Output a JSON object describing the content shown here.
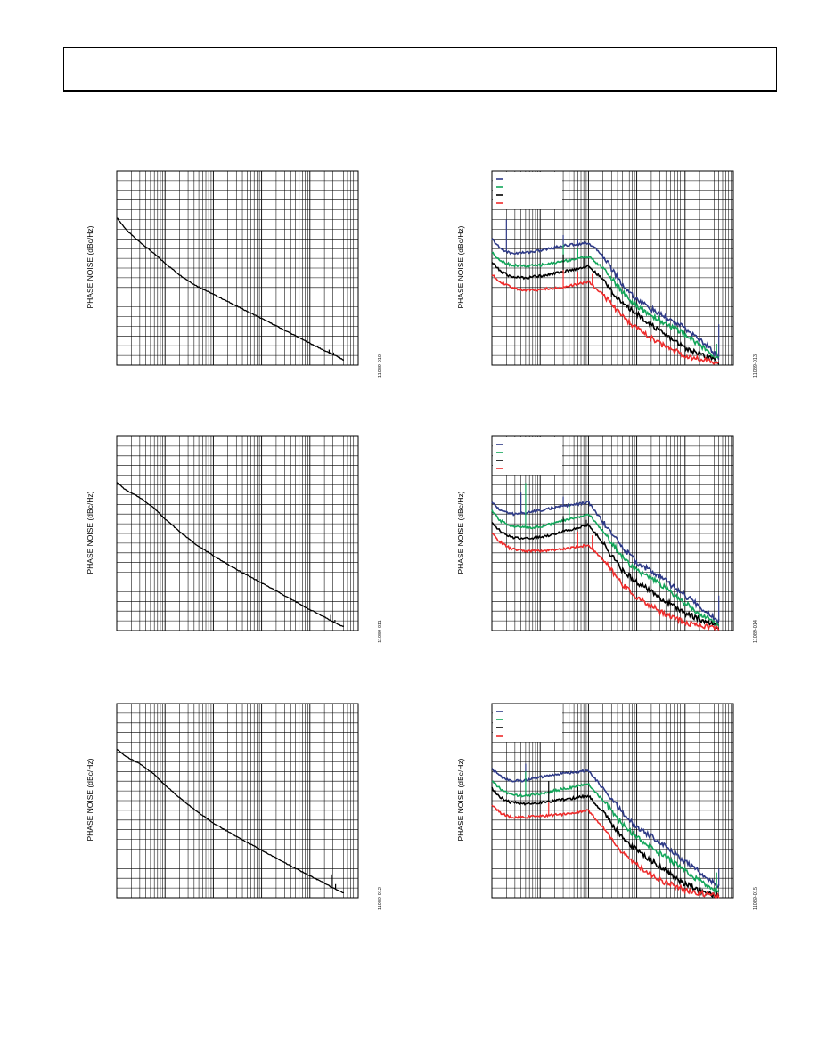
{
  "header": {
    "title": ""
  },
  "colors": {
    "grid": "#000000",
    "navy": "#2e3a87",
    "green": "#12a65a",
    "black": "#000000",
    "red": "#ee2b2b"
  },
  "chart_data": [
    {
      "type": "line",
      "panel": "left-1",
      "ylabel": "PHASE NOISE (dBc/Hz)",
      "figure_id": "11089-010",
      "xscale": "log",
      "xlim": [
        1000,
        100000000
      ],
      "ylim": [
        0,
        20
      ],
      "grid": true,
      "legend": "none",
      "series": [
        {
          "color": "black",
          "x": [
            1000,
            1600,
            2500,
            5000,
            10000,
            20000,
            40000,
            100000,
            300000,
            1000000,
            3000000,
            8000000,
            20000000,
            30000000,
            40000000,
            50000000
          ],
          "y": [
            15.2,
            13.9,
            13.0,
            11.8,
            10.5,
            9.3,
            8.3,
            7.3,
            6.1,
            4.8,
            3.6,
            2.5,
            1.5,
            1.1,
            0.8,
            0.5
          ],
          "spurs": [
            {
              "x": 25000000,
              "y": 1.6
            },
            {
              "x": 31000000,
              "y": 1.3
            }
          ]
        }
      ]
    },
    {
      "type": "line",
      "panel": "left-2",
      "ylabel": "PHASE NOISE (dBc/Hz)",
      "figure_id": "11089-011",
      "xscale": "log",
      "xlim": [
        1000,
        100000000
      ],
      "ylim": [
        0,
        20
      ],
      "grid": true,
      "legend": "none",
      "series": [
        {
          "color": "black",
          "x": [
            1000,
            1500,
            3000,
            6000,
            10000,
            20000,
            40000,
            100000,
            300000,
            1000000,
            3000000,
            8000000,
            20000000,
            30000000,
            40000000,
            50000000
          ],
          "y": [
            15.3,
            14.5,
            13.7,
            12.6,
            11.5,
            10.2,
            9.0,
            7.7,
            6.3,
            4.9,
            3.6,
            2.4,
            1.4,
            0.9,
            0.6,
            0.4
          ],
          "spurs": [
            {
              "x": 27000000,
              "y": 1.6
            },
            {
              "x": 33000000,
              "y": 1.1
            }
          ]
        }
      ]
    },
    {
      "type": "line",
      "panel": "left-3",
      "ylabel": "PHASE NOISE (dBc/Hz)",
      "figure_id": "11089-012",
      "xscale": "log",
      "xlim": [
        1000,
        100000000
      ],
      "ylim": [
        0,
        20
      ],
      "grid": true,
      "legend": "none",
      "series": [
        {
          "color": "black",
          "x": [
            1000,
            1500,
            3000,
            6000,
            10000,
            20000,
            40000,
            100000,
            300000,
            1000000,
            3000000,
            8000000,
            20000000,
            30000000,
            40000000,
            50000000
          ],
          "y": [
            15.3,
            14.6,
            13.8,
            12.7,
            11.6,
            10.3,
            9.1,
            7.7,
            6.3,
            4.9,
            3.6,
            2.5,
            1.5,
            1.0,
            0.7,
            0.5
          ],
          "spurs": [
            {
              "x": 28000000,
              "y": 2.4
            },
            {
              "x": 34000000,
              "y": 1.4
            }
          ]
        }
      ]
    },
    {
      "type": "line",
      "panel": "right-1",
      "ylabel": "PHASE NOISE (dBc/Hz)",
      "figure_id": "11089-013",
      "xscale": "log",
      "xlim": [
        1000,
        100000000
      ],
      "ylim": [
        0,
        20
      ],
      "grid": true,
      "legend": "top-left",
      "series": [
        {
          "color": "navy",
          "x": [
            1000,
            1500,
            2500,
            5000,
            10000,
            30000,
            100000,
            200000,
            500000,
            1000000,
            3000000,
            10000000,
            30000000,
            50000000
          ],
          "y": [
            13.0,
            12.0,
            11.5,
            11.6,
            11.8,
            12.3,
            12.6,
            11.3,
            8.3,
            6.8,
            5.2,
            3.8,
            1.9,
            0.8
          ],
          "spurs": [
            {
              "x": 2000,
              "y": 15.0
            },
            {
              "x": 30000,
              "y": 13.4
            },
            {
              "x": 60000,
              "y": 13.0
            },
            {
              "x": 50000000,
              "y": 4.2
            }
          ]
        },
        {
          "color": "green",
          "x": [
            1000,
            1500,
            2500,
            5000,
            10000,
            30000,
            100000,
            200000,
            500000,
            1000000,
            3000000,
            10000000,
            30000000,
            50000000
          ],
          "y": [
            11.6,
            10.8,
            10.3,
            10.2,
            10.3,
            10.7,
            11.2,
            10.0,
            7.6,
            6.0,
            4.6,
            3.2,
            1.4,
            0.6
          ],
          "spurs": [
            {
              "x": 30000,
              "y": 12.4
            },
            {
              "x": 60000,
              "y": 12.0
            },
            {
              "x": 45000000,
              "y": 2.2
            }
          ]
        },
        {
          "color": "black",
          "x": [
            1000,
            1500,
            2500,
            5000,
            10000,
            30000,
            100000,
            200000,
            500000,
            1000000,
            3000000,
            10000000,
            30000000,
            50000000
          ],
          "y": [
            10.6,
            9.7,
            9.1,
            9.0,
            9.2,
            9.6,
            10.2,
            8.8,
            6.3,
            5.3,
            3.5,
            1.8,
            0.8,
            0.3
          ],
          "spurs": [
            {
              "x": 30000,
              "y": 11.4
            },
            {
              "x": 80000,
              "y": 11.0
            },
            {
              "x": 300000,
              "y": 7.0
            }
          ]
        },
        {
          "color": "red",
          "x": [
            1000,
            1500,
            2500,
            5000,
            10000,
            30000,
            100000,
            200000,
            500000,
            1000000,
            3000000,
            10000000,
            30000000,
            50000000
          ],
          "y": [
            9.3,
            8.6,
            8.0,
            7.7,
            7.8,
            8.0,
            8.6,
            7.3,
            5.0,
            3.8,
            2.2,
            1.0,
            0.4,
            0.1
          ],
          "spurs": [
            {
              "x": 30000,
              "y": 9.8
            },
            {
              "x": 60000,
              "y": 9.6
            },
            {
              "x": 120000,
              "y": 9.4
            }
          ]
        }
      ]
    },
    {
      "type": "line",
      "panel": "right-2",
      "ylabel": "PHASE NOISE (dBc/Hz)",
      "figure_id": "11089-014",
      "xscale": "log",
      "xlim": [
        1000,
        100000000
      ],
      "ylim": [
        0,
        20
      ],
      "grid": true,
      "legend": "top-left",
      "series": [
        {
          "color": "navy",
          "x": [
            1000,
            1500,
            2500,
            5000,
            10000,
            30000,
            100000,
            200000,
            500000,
            1000000,
            3000000,
            10000000,
            30000000,
            50000000
          ],
          "y": [
            13.2,
            12.4,
            12.0,
            12.1,
            12.4,
            12.8,
            13.2,
            11.2,
            8.6,
            7.0,
            5.6,
            3.6,
            1.8,
            1.0
          ],
          "spurs": [
            {
              "x": 4000,
              "y": 14.2
            },
            {
              "x": 30000,
              "y": 13.8
            },
            {
              "x": 50000000,
              "y": 3.6
            }
          ]
        },
        {
          "color": "green",
          "x": [
            1000,
            1500,
            2500,
            5000,
            10000,
            30000,
            100000,
            200000,
            500000,
            1000000,
            3000000,
            10000000,
            30000000,
            50000000
          ],
          "y": [
            12.3,
            11.3,
            10.8,
            10.6,
            10.7,
            11.3,
            12.0,
            10.2,
            7.6,
            6.2,
            4.8,
            2.8,
            1.2,
            0.6
          ],
          "spurs": [
            {
              "x": 5000,
              "y": 15.2
            },
            {
              "x": 40000,
              "y": 13.0
            }
          ]
        },
        {
          "color": "black",
          "x": [
            1000,
            1500,
            2500,
            5000,
            10000,
            30000,
            100000,
            200000,
            500000,
            1000000,
            3000000,
            10000000,
            30000000,
            50000000
          ],
          "y": [
            11.2,
            10.2,
            9.6,
            9.5,
            9.6,
            10.2,
            10.9,
            9.0,
            6.2,
            5.0,
            3.4,
            1.8,
            0.8,
            0.4
          ],
          "spurs": [
            {
              "x": 30000,
              "y": 11.8
            },
            {
              "x": 90000,
              "y": 11.4
            }
          ]
        },
        {
          "color": "red",
          "x": [
            1000,
            1500,
            2500,
            5000,
            10000,
            30000,
            100000,
            200000,
            500000,
            1000000,
            3000000,
            10000000,
            30000000,
            50000000
          ],
          "y": [
            10.0,
            9.1,
            8.4,
            8.2,
            8.2,
            8.4,
            8.8,
            7.3,
            4.8,
            3.4,
            2.0,
            0.8,
            0.4,
            0.2
          ],
          "spurs": [
            {
              "x": 60000,
              "y": 10.2
            },
            {
              "x": 120000,
              "y": 9.8
            }
          ]
        }
      ]
    },
    {
      "type": "line",
      "panel": "right-3",
      "ylabel": "PHASE NOISE (dBc/Hz)",
      "figure_id": "11089-015",
      "xscale": "log",
      "xlim": [
        1000,
        100000000
      ],
      "ylim": [
        0,
        20
      ],
      "grid": true,
      "legend": "top-left",
      "series": [
        {
          "color": "navy",
          "x": [
            1000,
            1500,
            2500,
            5000,
            10000,
            30000,
            100000,
            200000,
            500000,
            1000000,
            3000000,
            10000000,
            30000000,
            50000000
          ],
          "y": [
            13.3,
            12.5,
            12.0,
            12.1,
            12.4,
            12.8,
            13.1,
            11.2,
            8.8,
            7.2,
            5.8,
            3.7,
            2.0,
            1.2
          ],
          "spurs": [
            {
              "x": 5000,
              "y": 13.8
            },
            {
              "x": 50000000,
              "y": 3.0
            }
          ]
        },
        {
          "color": "green",
          "x": [
            1000,
            1500,
            2500,
            5000,
            10000,
            30000,
            100000,
            200000,
            500000,
            1000000,
            3000000,
            10000000,
            30000000,
            50000000
          ],
          "y": [
            12.0,
            11.2,
            10.6,
            10.5,
            10.7,
            11.2,
            11.7,
            10.0,
            7.6,
            6.2,
            4.6,
            2.8,
            1.1,
            0.6
          ],
          "spurs": [
            {
              "x": 5000,
              "y": 13.0
            },
            {
              "x": 45000000,
              "y": 2.6
            }
          ]
        },
        {
          "color": "black",
          "x": [
            1000,
            1500,
            2500,
            5000,
            10000,
            30000,
            100000,
            200000,
            500000,
            1000000,
            3000000,
            10000000,
            30000000,
            50000000
          ],
          "y": [
            11.3,
            10.3,
            9.8,
            9.7,
            9.8,
            10.1,
            10.5,
            8.8,
            6.2,
            4.9,
            3.2,
            1.4,
            0.4,
            0.2
          ],
          "spurs": [
            {
              "x": 15000,
              "y": 12.0
            },
            {
              "x": 60000,
              "y": 11.4
            }
          ]
        },
        {
          "color": "red",
          "x": [
            1000,
            1500,
            2500,
            5000,
            10000,
            30000,
            100000,
            200000,
            500000,
            1000000,
            3000000,
            10000000,
            30000000,
            50000000
          ],
          "y": [
            9.6,
            8.7,
            8.3,
            8.3,
            8.4,
            8.6,
            9.0,
            7.2,
            4.6,
            3.4,
            1.8,
            0.8,
            0.3,
            0.1
          ],
          "spurs": [
            {
              "x": 15000,
              "y": 9.8
            }
          ]
        }
      ]
    }
  ]
}
